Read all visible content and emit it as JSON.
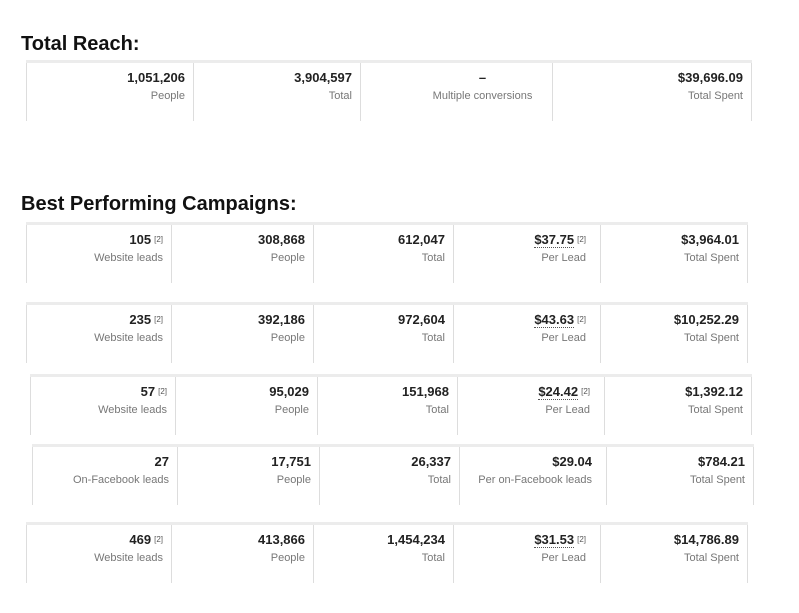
{
  "total_reach": {
    "title": "Total Reach:",
    "cells": [
      {
        "value": "1,051,206",
        "label": "People"
      },
      {
        "value": "3,904,597",
        "label": "Total"
      },
      {
        "value": "–",
        "label": "Multiple conversions"
      },
      {
        "value": "$39,696.09",
        "label": "Total Spent"
      }
    ]
  },
  "campaigns": {
    "title": "Best Performing Campaigns:",
    "rows": [
      {
        "results": "105",
        "results_note": "[2]",
        "results_label": "Website leads",
        "reach": "308,868",
        "reach_label": "People",
        "impressions": "612,047",
        "impressions_label": "Total",
        "cost": "$37.75",
        "cost_note": "[2]",
        "cost_label": "Per Lead",
        "spent": "$3,964.01",
        "spent_label": "Total Spent"
      },
      {
        "results": "235",
        "results_note": "[2]",
        "results_label": "Website leads",
        "reach": "392,186",
        "reach_label": "People",
        "impressions": "972,604",
        "impressions_label": "Total",
        "cost": "$43.63",
        "cost_note": "[2]",
        "cost_label": "Per Lead",
        "spent": "$10,252.29",
        "spent_label": "Total Spent"
      },
      {
        "results": "57",
        "results_note": "[2]",
        "results_label": "Website leads",
        "reach": "95,029",
        "reach_label": "People",
        "impressions": "151,968",
        "impressions_label": "Total",
        "cost": "$24.42",
        "cost_note": "[2]",
        "cost_label": "Per Lead",
        "spent": "$1,392.12",
        "spent_label": "Total Spent"
      },
      {
        "results": "27",
        "results_note": "",
        "results_label": "On-Facebook leads",
        "reach": "17,751",
        "reach_label": "People",
        "impressions": "26,337",
        "impressions_label": "Total",
        "cost": "$29.04",
        "cost_note": "",
        "cost_label": "Per on-Facebook leads",
        "spent": "$784.21",
        "spent_label": "Total Spent"
      },
      {
        "results": "469",
        "results_note": "[2]",
        "results_label": "Website leads",
        "reach": "413,866",
        "reach_label": "People",
        "impressions": "1,454,234",
        "impressions_label": "Total",
        "cost": "$31.53",
        "cost_note": "[2]",
        "cost_label": "Per Lead",
        "spent": "$14,786.89",
        "spent_label": "Total Spent"
      }
    ]
  }
}
